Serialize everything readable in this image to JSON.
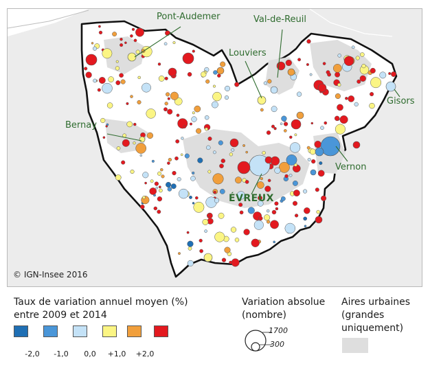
{
  "map": {
    "cities": {
      "pont_audemer": "Pont-Audemer",
      "val_de_reuil": "Val-de-Reuil",
      "louviers": "Louviers",
      "gisors": "Gisors",
      "bernay": "Bernay",
      "vernon": "Vernon",
      "evreux": "ÉVREUX"
    },
    "copyright": "© IGN-Insee 2016"
  },
  "legend": {
    "rate": {
      "title_line1": "Taux de variation annuel moyen (%)",
      "title_line2": "entre 2009 et 2014",
      "classes": [
        {
          "color": "#1f6fb4"
        },
        {
          "color": "#4a96d8"
        },
        {
          "color": "#c4e2f7"
        },
        {
          "color": "#fbf584"
        },
        {
          "color": "#f19f3c"
        },
        {
          "color": "#e3191f"
        }
      ],
      "breaks": [
        "-2,0",
        "-1,0",
        "0,0",
        "+1,0",
        "+2,0"
      ]
    },
    "absolute": {
      "title_line1": "Variation absolue",
      "title_line2": "(nombre)",
      "max_value": "1700",
      "min_value": "300"
    },
    "urban": {
      "title_line1": "Aires urbaines",
      "title_line2": "(grandes",
      "title_line3": "uniquement)",
      "color": "#dedede"
    }
  }
}
